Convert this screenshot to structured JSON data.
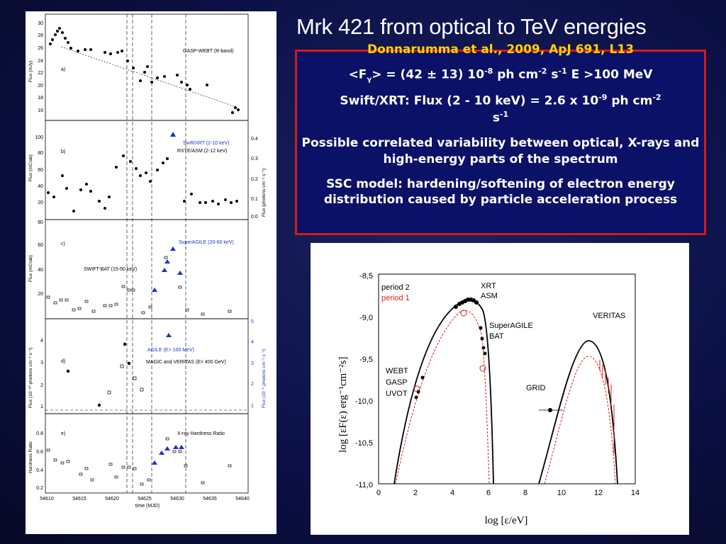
{
  "slide": {
    "title": "Mrk 421 from optical to TeV energies"
  },
  "info": {
    "citation": "Donnarumma et al., 2009, ApJ 691, L13",
    "line_flux_pre": "<F",
    "line_flux_sub": "γ",
    "line_flux_mid": "> = (42 ± 13) 10",
    "line_flux_exp": "-8",
    "line_flux_unit1": " ph cm",
    "line_flux_exp2": "-2",
    "line_flux_unit2": " s",
    "line_flux_exp3": "-1",
    "line_flux_post": " E >100 MeV",
    "xrt_pre": "Swift/XRT: Flux (2 - 10 keV) = 2.6 x 10",
    "xrt_exp": "-9",
    "xrt_unit1": " ph cm",
    "xrt_exp2": "-2",
    "xrt_unit2": " s",
    "xrt_exp3": "-1",
    "correlated": "Possible correlated variability between optical, X-rays and high-energy parts of the spectrum",
    "ssc": "SSC model: hardening/softening of electron energy distribution caused by particle acceleration process"
  },
  "lightcurves": {
    "panels": [
      {
        "id": "a",
        "label": "a)",
        "legend": "GASP-WEBT (R-band)",
        "ylabel": "Flux (mJy)",
        "yticks": [
          "30",
          "28",
          "26",
          "24",
          "22",
          "20",
          "18",
          "16"
        ]
      },
      {
        "id": "b",
        "label": "b)",
        "legend1": "Swift/XRT (2-10 keV)",
        "legend2": "RXTE/ASM (2-12 keV)",
        "ylabel": "Flux (mCrab)",
        "ylabel_right": "Flux (photons cm⁻² s⁻¹)",
        "yticks": [
          "100",
          "80",
          "60",
          "40",
          "20"
        ],
        "yticks_right": [
          "0.4",
          "0.3",
          "0.2",
          "0.1",
          "0.0"
        ]
      },
      {
        "id": "c",
        "label": "c)",
        "legend1": "SuperAGILE (20-60 keV)",
        "legend2": "SWIFT-BAT  (15-50 keV)",
        "ylabel": "Flux (mCrab)",
        "yticks": [
          "80",
          "60",
          "40",
          "20"
        ]
      },
      {
        "id": "d",
        "label": "d)",
        "legend1": "AGILE (E> 100 MeV)",
        "legend2": "MAGIC and VERITAS (E> 400 GeV)",
        "ylabel": "Flux (10⁻¹⁰ photons cm⁻² s⁻¹)",
        "ylabel_right": "Flux (10⁻⁶ photons cm⁻² s⁻¹)",
        "yticks": [
          "4",
          "3",
          "2",
          "1"
        ],
        "yticks_right": [
          "5",
          "4",
          "3",
          "2",
          "1"
        ]
      },
      {
        "id": "e",
        "label": "e)",
        "legend": "X-ray Hardness Ratio",
        "ylabel": "Hardness Ratio",
        "yticks": [
          "0.8",
          "0.6",
          "0.4",
          "0.2"
        ]
      }
    ],
    "xticks": [
      "54610",
      "54615",
      "54620",
      "54625",
      "54630",
      "54635",
      "54640"
    ],
    "xlabel": "time (MJD)"
  },
  "sed": {
    "legend": {
      "period2": "period 2",
      "period1": "period 1"
    },
    "labels": {
      "xrt": "XRT",
      "asm": "ASM",
      "superagile": "SuperAGILE",
      "bat": "BAT",
      "veritas": "VERITAS",
      "webt": "WEBT",
      "gasp": "GASP",
      "uvot": "UVOT",
      "grid": "GRID"
    },
    "yticks": [
      "-8,5",
      "-9,0",
      "-9,5",
      "-10,0",
      "-10,5",
      "-11,0"
    ],
    "xticks": [
      "0",
      "2",
      "4",
      "6",
      "8",
      "10",
      "12",
      "14"
    ],
    "xlabel": "log [ε/eV]",
    "ylabel": "log [εF(ε) erg⁻¹cm⁻²s]",
    "colors": {
      "period1": "#d42020",
      "period2": "#000000"
    }
  }
}
